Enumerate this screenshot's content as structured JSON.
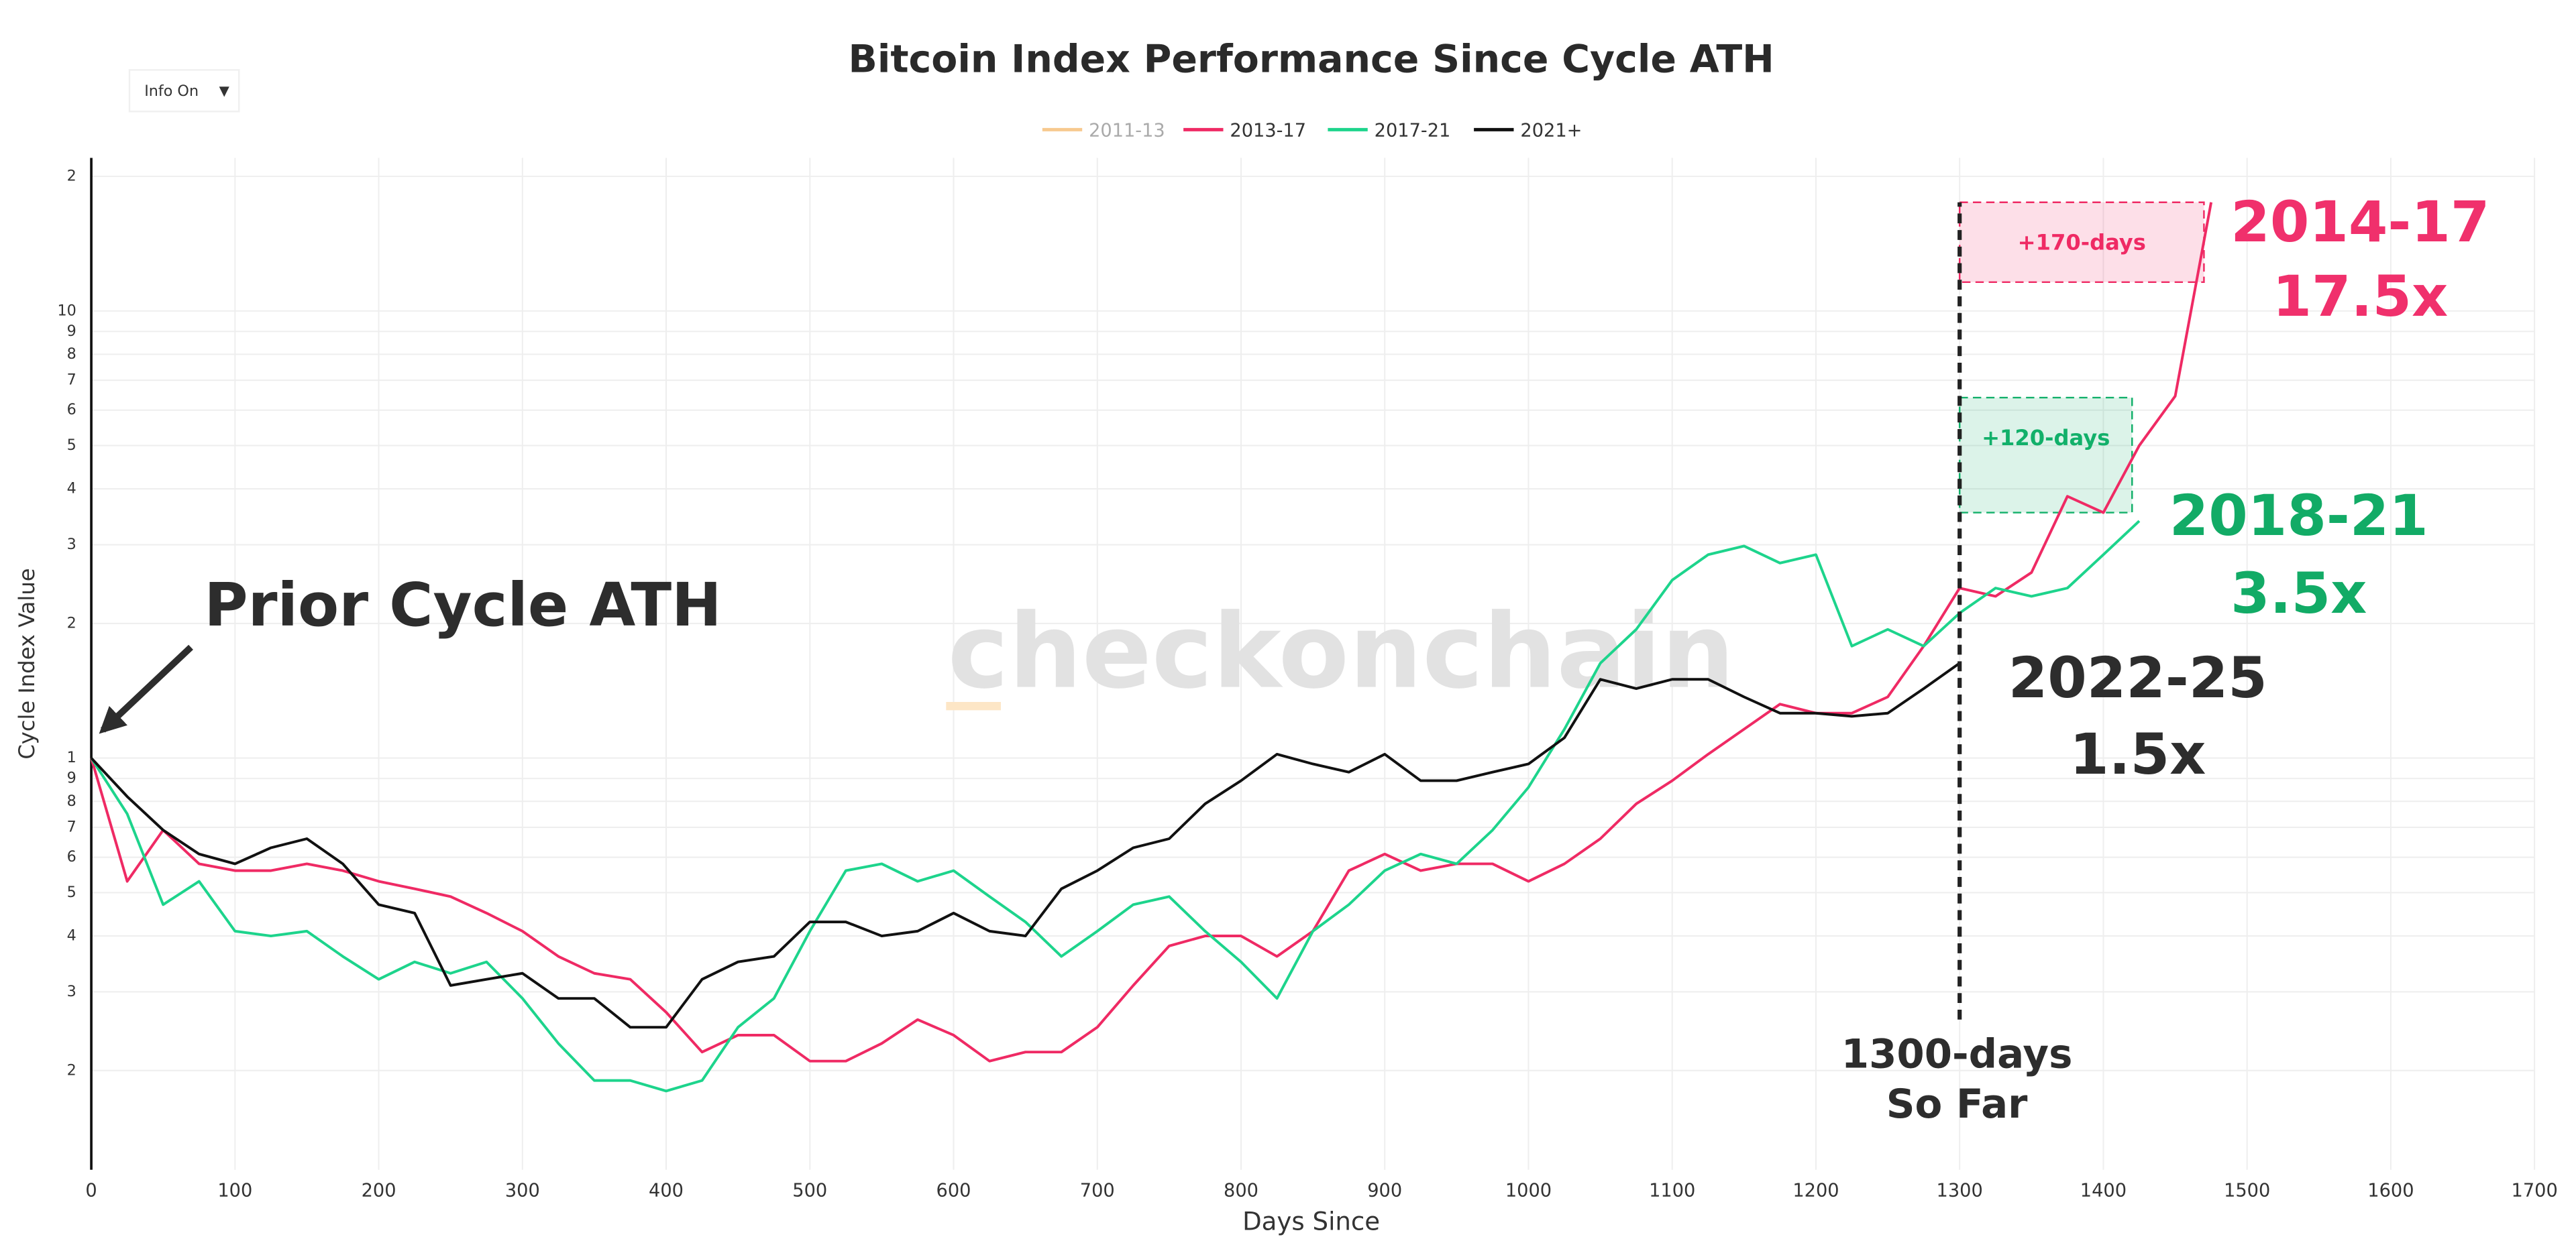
{
  "chart_data": {
    "type": "line",
    "title": "Bitcoin Index Performance Since Cycle ATH",
    "control": {
      "label": "Info On",
      "icon": "▼"
    },
    "watermark": "checkonchain",
    "xlabel": "Days Since",
    "ylabel": "Cycle Index Value",
    "log_y": true,
    "grid": true,
    "legend": "top",
    "xlim": [
      0,
      1700
    ],
    "xticks": [
      0,
      100,
      200,
      300,
      400,
      500,
      600,
      700,
      800,
      900,
      1000,
      1100,
      1200,
      1300,
      1400,
      1500,
      1600,
      1700
    ],
    "ylim": [
      0.12,
      22
    ],
    "yticks": [
      {
        "value": 0.2,
        "label": "2"
      },
      {
        "value": 0.3,
        "label": "3"
      },
      {
        "value": 0.4,
        "label": "4"
      },
      {
        "value": 0.5,
        "label": "5"
      },
      {
        "value": 0.6,
        "label": "6"
      },
      {
        "value": 0.7,
        "label": "7"
      },
      {
        "value": 0.8,
        "label": "8"
      },
      {
        "value": 0.9,
        "label": "9"
      },
      1,
      2,
      3,
      4,
      5,
      6,
      7,
      8,
      9,
      10,
      {
        "value": 20,
        "label": "2"
      }
    ],
    "x": [
      0,
      25,
      50,
      75,
      100,
      125,
      150,
      175,
      200,
      225,
      250,
      275,
      300,
      325,
      350,
      375,
      400,
      425,
      450,
      475,
      500,
      525,
      550,
      575,
      600,
      625,
      650,
      675,
      700,
      725,
      750,
      775,
      800,
      825,
      850,
      875,
      900,
      925,
      950,
      975,
      1000,
      1025,
      1050,
      1075,
      1100,
      1125,
      1150,
      1175,
      1200,
      1225,
      1250,
      1275,
      1300,
      1325,
      1350,
      1375,
      1400,
      1425,
      1450,
      1475
    ],
    "series": [
      {
        "name": "2011-13",
        "color": "#f7c98f",
        "visible": false
      },
      {
        "name": "2013-17",
        "color": "#ef2a64",
        "values": [
          1.0,
          0.53,
          0.69,
          0.58,
          0.56,
          0.56,
          0.58,
          0.56,
          0.53,
          0.51,
          0.49,
          0.45,
          0.41,
          0.36,
          0.33,
          0.32,
          0.27,
          0.22,
          0.24,
          0.24,
          0.21,
          0.21,
          0.23,
          0.26,
          0.24,
          0.21,
          0.22,
          0.22,
          0.25,
          0.31,
          0.38,
          0.4,
          0.4,
          0.36,
          0.41,
          0.56,
          0.61,
          0.56,
          0.58,
          0.58,
          0.53,
          0.58,
          0.66,
          0.79,
          0.89,
          1.02,
          1.16,
          1.32,
          1.26,
          1.26,
          1.37,
          1.78,
          2.4,
          2.3,
          2.6,
          3.85,
          3.54,
          5.0,
          6.45,
          17.5
        ]
      },
      {
        "name": "2017-21",
        "color": "#1dd48c",
        "values": [
          1.0,
          0.75,
          0.47,
          0.53,
          0.41,
          0.4,
          0.41,
          0.36,
          0.32,
          0.35,
          0.33,
          0.35,
          0.29,
          0.23,
          0.19,
          0.19,
          0.18,
          0.19,
          0.25,
          0.29,
          0.41,
          0.56,
          0.58,
          0.53,
          0.56,
          0.49,
          0.43,
          0.36,
          0.41,
          0.47,
          0.49,
          0.41,
          0.35,
          0.29,
          0.41,
          0.47,
          0.56,
          0.61,
          0.58,
          0.69,
          0.86,
          1.16,
          1.63,
          1.94,
          2.5,
          2.85,
          2.98,
          2.73,
          2.85,
          1.78,
          1.94,
          1.78,
          2.11,
          2.4,
          2.3,
          2.4,
          2.85,
          3.39,
          null,
          null
        ]
      },
      {
        "name": "2021+",
        "color": "#111111",
        "values": [
          1.0,
          0.82,
          0.69,
          0.61,
          0.58,
          0.63,
          0.66,
          0.58,
          0.47,
          0.45,
          0.31,
          0.32,
          0.33,
          0.29,
          0.29,
          0.25,
          0.25,
          0.32,
          0.35,
          0.36,
          0.43,
          0.43,
          0.4,
          0.41,
          0.45,
          0.41,
          0.4,
          0.51,
          0.56,
          0.63,
          0.66,
          0.79,
          0.89,
          1.02,
          0.97,
          0.93,
          1.02,
          0.89,
          0.89,
          0.93,
          0.97,
          1.11,
          1.5,
          1.43,
          1.5,
          1.5,
          1.37,
          1.26,
          1.26,
          1.24,
          1.26,
          1.43,
          1.63,
          null,
          null,
          null,
          null,
          null,
          null,
          null
        ]
      }
    ],
    "shapes": [
      {
        "label": "+170-days",
        "color": "#ef2a64",
        "x0": 1300,
        "x1": 1470,
        "y0": 11.6,
        "y1": 17.5
      },
      {
        "label": "+120-days",
        "color": "#12b06a",
        "x0": 1300,
        "x1": 1420,
        "y0": 3.54,
        "y1": 6.4
      }
    ],
    "vline": {
      "x": 1300,
      "y0": 0.26,
      "y1": 17.5
    },
    "annotations": [
      {
        "text": "Prior Cycle ATH",
        "color": "#2d2d2d"
      },
      {
        "text": "2014-17",
        "color": "#f0306c"
      },
      {
        "text": "17.5x",
        "color": "#f0306c"
      },
      {
        "text": "2018-21",
        "color": "#12ab66"
      },
      {
        "text": "3.5x",
        "color": "#12ab66"
      },
      {
        "text": "2022-25",
        "color": "#2d2d2d"
      },
      {
        "text": "1.5x",
        "color": "#2d2d2d"
      },
      {
        "text": "1300-days",
        "color": "#2d2d2d"
      },
      {
        "text": "So Far",
        "color": "#2d2d2d"
      }
    ]
  }
}
